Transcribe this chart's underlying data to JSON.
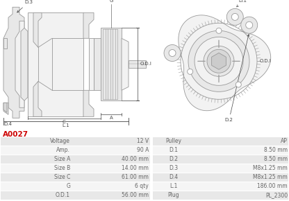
{
  "title": "A0027",
  "title_color": "#cc0000",
  "background_color": "#ffffff",
  "table_header_row": [
    "Voltage",
    "12 V",
    "Pulley",
    "AP"
  ],
  "table_rows": [
    [
      "Amp.",
      "90 A",
      "D.1",
      "8.50 mm"
    ],
    [
      "Size A",
      "40.00 mm",
      "D.2",
      "8.50 mm"
    ],
    [
      "Size B",
      "14.00 mm",
      "D.3",
      "M8x1.25 mm"
    ],
    [
      "Size C",
      "61.00 mm",
      "D.4",
      "M8x1.25 mm"
    ],
    [
      "G",
      "6 qty",
      "L.1",
      "186.00 mm"
    ],
    [
      "O.D.1",
      "56.00 mm",
      "Plug",
      "PL_2300"
    ]
  ],
  "row_colors": [
    "#e8e8e8",
    "#f5f5f5"
  ],
  "text_color": "#666666",
  "label_color": "#555555",
  "font_size": 5.5,
  "draw_lw": 0.6,
  "gray": "#999999",
  "dgray": "#444444",
  "fill_light": "#f2f2f2",
  "fill_mid": "#e8e8e8",
  "fill_dark": "#d8d8d8"
}
